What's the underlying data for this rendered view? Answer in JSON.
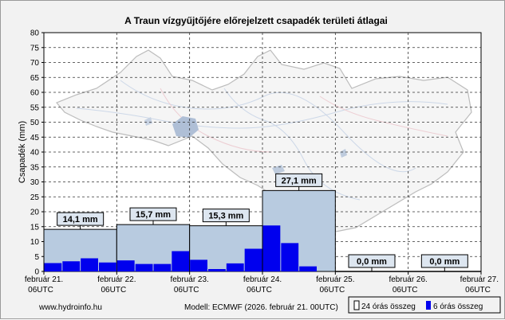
{
  "chart_data": {
    "type": "bar",
    "title": "A Traun vízgyűjtőjére előrejelzett csapadék területi átlagai",
    "ylabel": "Csapadék (mm)",
    "ylim": [
      0,
      80
    ],
    "ytick_step": 5,
    "grid": true,
    "x_ticks": [
      {
        "line1": "február 21.",
        "line2": "06UTC"
      },
      {
        "line1": "február 22.",
        "line2": "06UTC"
      },
      {
        "line1": "február 23.",
        "line2": "06UTC"
      },
      {
        "line1": "február 24.",
        "line2": "06UTC"
      },
      {
        "line1": "február 25.",
        "line2": "06UTC"
      },
      {
        "line1": "február 26.",
        "line2": "06UTC"
      },
      {
        "line1": "február 27.",
        "line2": "06UTC"
      }
    ],
    "series": [
      {
        "name": "24 órás összeg",
        "color": "#b8cbe0",
        "values": [
          14.1,
          15.7,
          15.3,
          27.1,
          0.0,
          0.0
        ],
        "labels": [
          "14,1 mm",
          "15,7 mm",
          "15,3 mm",
          "27,1 mm",
          "0,0 mm",
          "0,0 mm"
        ]
      },
      {
        "name": "6 órás összeg",
        "color": "#0000ee",
        "values": [
          2.8,
          3.4,
          4.4,
          3.0,
          3.7,
          2.5,
          2.5,
          6.8,
          3.9,
          0.8,
          2.7,
          7.6,
          15.4,
          9.5,
          1.7,
          0.0,
          0.0,
          0.0,
          0.0,
          0.0,
          0.0,
          0.0,
          0.0,
          0.0
        ]
      }
    ]
  },
  "footer": {
    "website": "www.hydroinfo.hu",
    "model": "Modell:  ECMWF (2026. február 21. 00UTC)"
  },
  "legend": {
    "position": "bottom-right",
    "item_24h": "24 órás összeg",
    "item_6h": "6 órás összeg"
  },
  "background": {
    "description_icon": "basin-map"
  }
}
